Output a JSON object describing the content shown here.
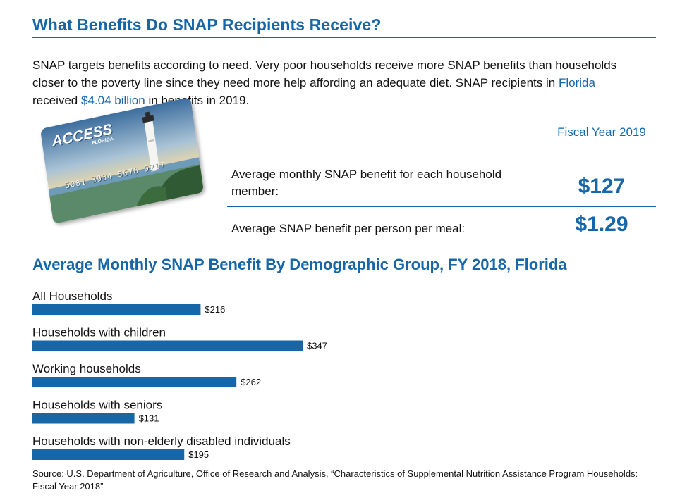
{
  "header": {
    "title": "What Benefits Do SNAP Recipients Receive?"
  },
  "intro": {
    "part1": "SNAP targets benefits according to need. Very poor households receive more SNAP benefits than households closer to the poverty line since they need more help affording an adequate diet. SNAP recipients in ",
    "state": "Florida",
    "part2": " received ",
    "amount": "$4.04 billion",
    "part3": " in benefits in 2019."
  },
  "card": {
    "logo": "ACCESS",
    "logo_sub": "FLORIDA",
    "number": "5081 3934 5678 9217"
  },
  "summary": {
    "column_header": "Fiscal Year 2019",
    "rows": [
      {
        "label": "Average monthly SNAP benefit for each household member:",
        "value": "$127"
      },
      {
        "label": "Average SNAP benefit per person per meal:",
        "value": "$1.29"
      }
    ]
  },
  "chart_title": "Average Monthly SNAP Benefit By Demographic Group, FY 2018, Florida",
  "chart_data": {
    "type": "bar",
    "orientation": "horizontal",
    "categories": [
      "All Households",
      "Households with children",
      "Working households",
      "Households with seniors",
      "Households with non-elderly disabled individuals"
    ],
    "values": [
      216,
      347,
      262,
      131,
      195
    ],
    "value_labels": [
      "$216",
      "$347",
      "$262",
      "$131",
      "$195"
    ],
    "bar_color": "#1666a8",
    "grid": false,
    "legend": "none"
  },
  "source": "Source: U.S. Department of Agriculture, Office of Research and Analysis, “Characteristics of Supplemental Nutrition Assistance Program Households: Fiscal Year 2018”",
  "colors": {
    "accent": "#1666a8",
    "text": "#111111"
  }
}
